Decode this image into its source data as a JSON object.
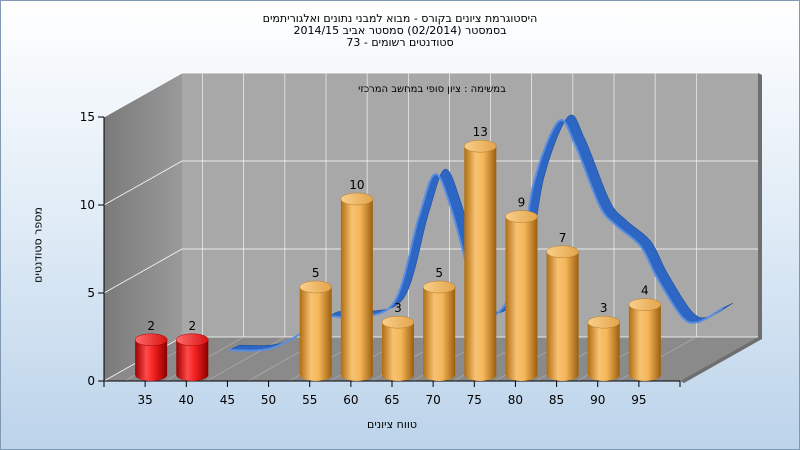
{
  "titles": [
    "היסטוגרמת ציונים בקורס - מבוא למבני נתונים ואלגוריתמים",
    "בסמסטר  (02/2014)  סמסטר אביב 2014/15",
    "סטודנטים רשומים - 73"
  ],
  "chart_data": {
    "type": "bar",
    "subtitle": "במשימה : ציון סופי במחשב המרכזי",
    "xlabel": "טווח ציונים",
    "ylabel": "מספר סטודנטים",
    "categories": [
      "35",
      "40",
      "45",
      "50",
      "55",
      "60",
      "65",
      "70",
      "75",
      "80",
      "85",
      "90",
      "95"
    ],
    "bars": [
      {
        "x": 35,
        "value": 2,
        "color": "red"
      },
      {
        "x": 40,
        "value": 2,
        "color": "red"
      },
      {
        "x": 55,
        "value": 5,
        "color": "orange"
      },
      {
        "x": 60,
        "value": 10,
        "color": "orange"
      },
      {
        "x": 65,
        "value": 3,
        "color": "orange"
      },
      {
        "x": 70,
        "value": 5,
        "color": "orange"
      },
      {
        "x": 75,
        "value": 13,
        "color": "orange"
      },
      {
        "x": 80,
        "value": 9,
        "color": "orange"
      },
      {
        "x": 85,
        "value": 7,
        "color": "orange"
      },
      {
        "x": 90,
        "value": 3,
        "color": "orange"
      },
      {
        "x": 95,
        "value": 4,
        "color": "orange"
      }
    ],
    "yticks": [
      0,
      5,
      10,
      15
    ],
    "ylim": [
      0,
      15
    ],
    "xlim": [
      30,
      100
    ],
    "trend_curve": {
      "x": [
        40,
        45,
        50,
        52,
        55,
        60,
        63,
        65,
        67,
        70,
        72,
        75,
        77,
        80,
        82,
        85,
        87,
        90,
        92,
        95,
        97,
        100
      ],
      "y": [
        0.5,
        0.6,
        1.8,
        2.4,
        2.4,
        3.2,
        8,
        10.5,
        8.5,
        3.5,
        2.4,
        4.6,
        10,
        13.5,
        12.2,
        8.7,
        7.6,
        6.4,
        4.6,
        2.4,
        2.1,
        2.9
      ]
    },
    "grid": true,
    "legend": "none",
    "colors": {
      "bar_low": "#e01010",
      "bar": "#f2a83a",
      "curve": "#2e67c3",
      "wall": "#a8a8a8",
      "grid": "#ffffff"
    }
  }
}
